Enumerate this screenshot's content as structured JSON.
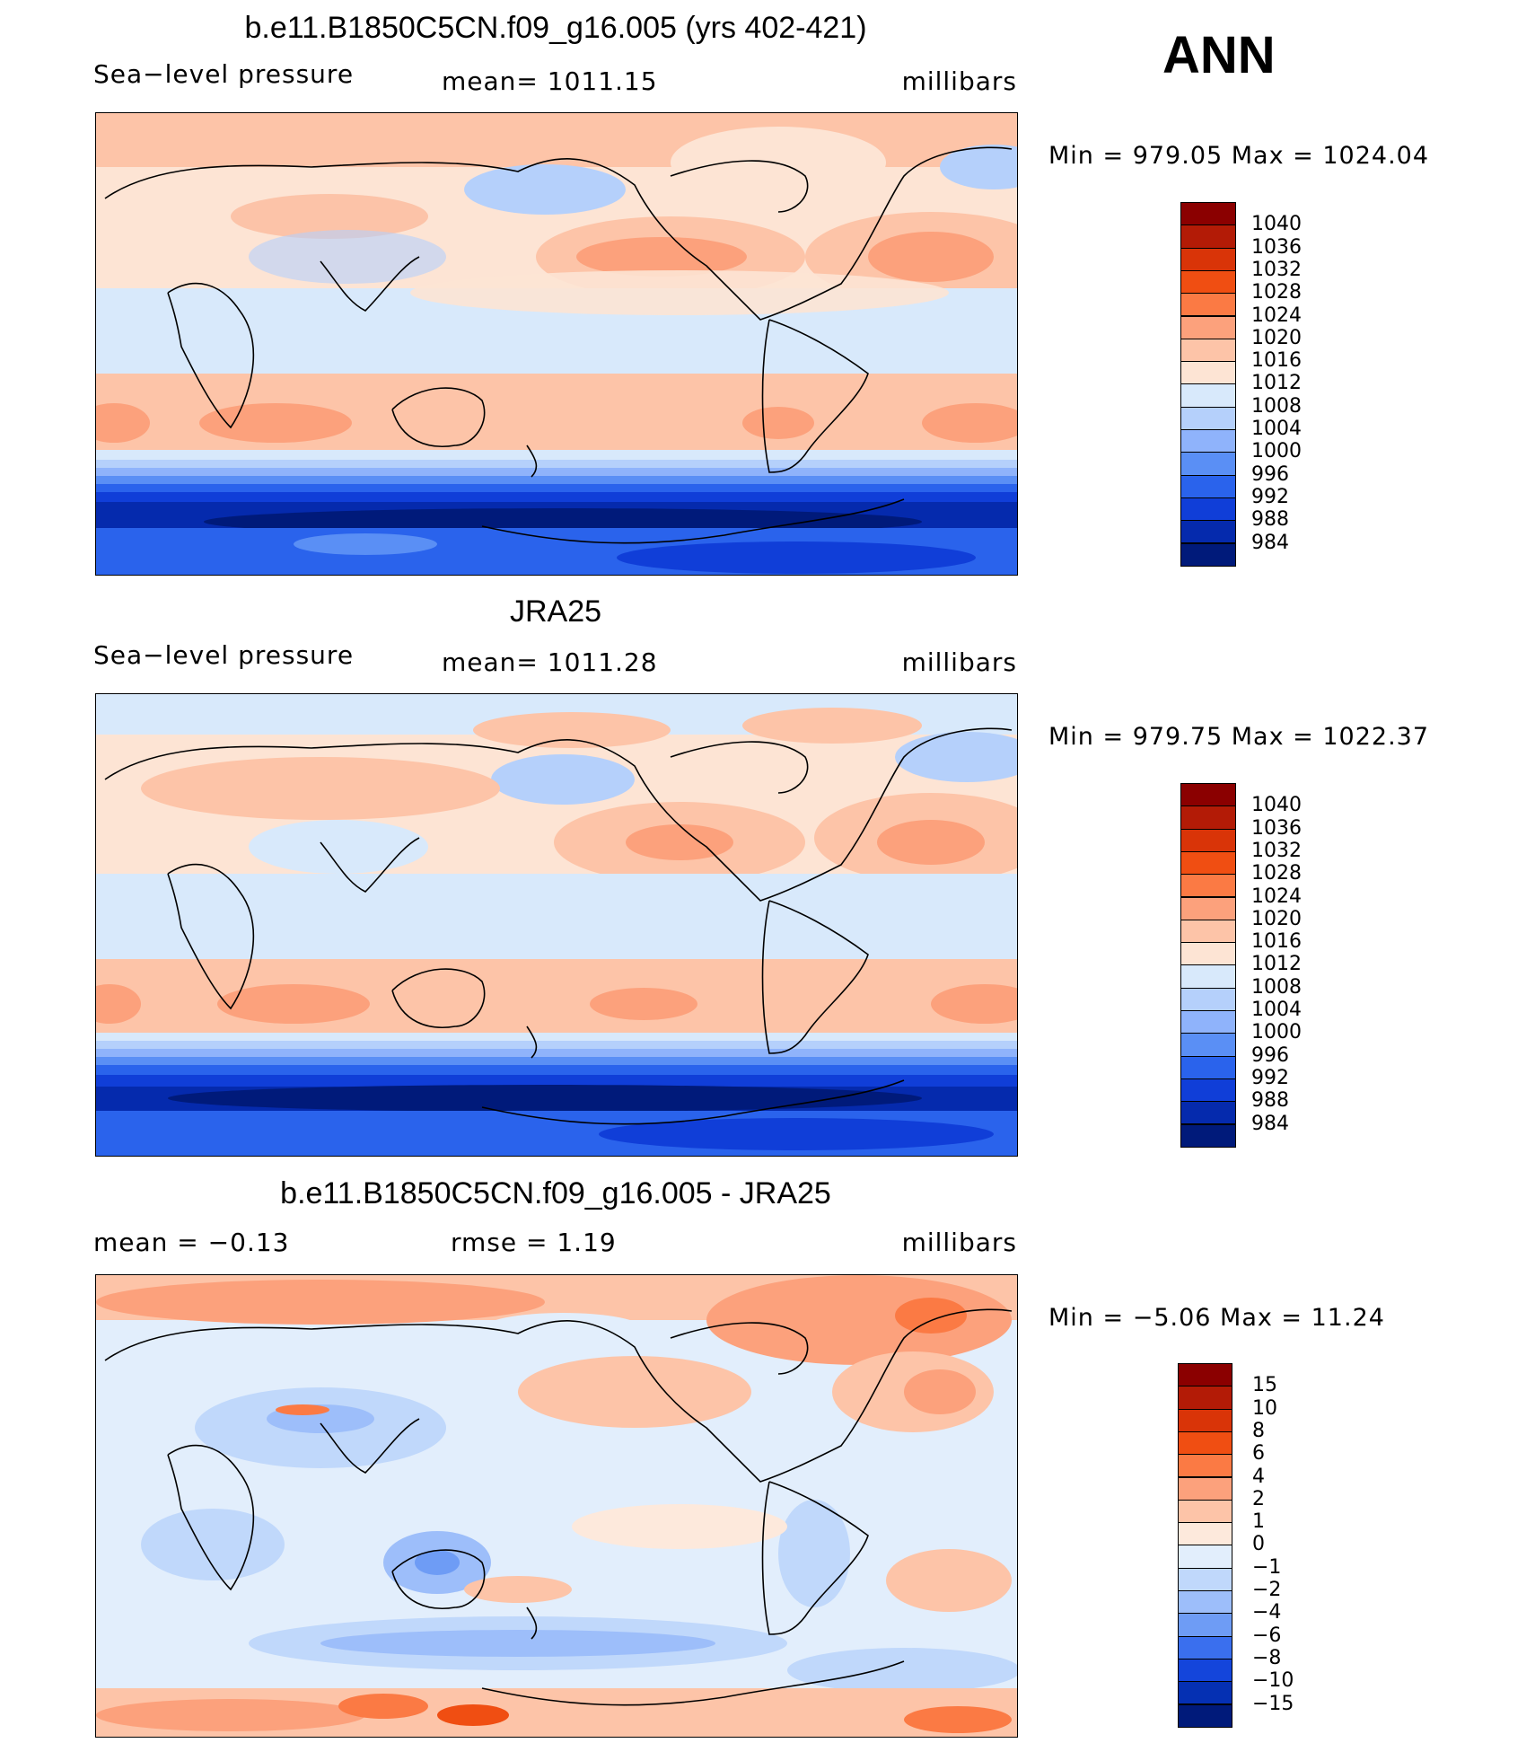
{
  "season": "ANN",
  "panels": [
    {
      "title": "b.e11.B1850C5CN.f09_g16.005 (yrs 402-421)",
      "left": "Sea−level pressure",
      "center": "mean=  1011.15",
      "right": "millibars",
      "minmax": "Min  =  979.05  Max  =  1024.04",
      "kind": "model"
    },
    {
      "title": "JRA25",
      "left": "Sea−level pressure",
      "center": "mean=  1011.28",
      "right": "millibars",
      "minmax": "Min  =  979.75  Max  =  1022.37",
      "kind": "obs"
    },
    {
      "title": "b.e11.B1850C5CN.f09_g16.005 - JRA25",
      "left": "mean  =    −0.13",
      "center": "rmse  =     1.19",
      "right": "millibars",
      "minmax": "Min  =    −5.06  Max  =    11.24",
      "kind": "diff"
    }
  ],
  "colorbars": {
    "abs_levels": [
      "1040",
      "1036",
      "1032",
      "1028",
      "1024",
      "1020",
      "1016",
      "1012",
      "1008",
      "1004",
      "1000",
      "996",
      "992",
      "988",
      "984"
    ],
    "abs_colors": [
      "#8b0000",
      "#b31b06",
      "#d93408",
      "#f04e12",
      "#fb7a44",
      "#fca17c",
      "#fdc4a8",
      "#fde4d4",
      "#d8e9fb",
      "#b5d0fb",
      "#8fb3fb",
      "#5a8ff5",
      "#2a63ec",
      "#103ed8",
      "#052aad",
      "#001a7a"
    ],
    "diff_levels": [
      "15",
      "10",
      "8",
      "6",
      "4",
      "2",
      "1",
      "0",
      "−1",
      "−2",
      "−4",
      "−6",
      "−8",
      "−10",
      "−15"
    ],
    "diff_colors": [
      "#8b0000",
      "#b31b06",
      "#d93408",
      "#f04e12",
      "#fb7a44",
      "#fca17c",
      "#fdc4a8",
      "#fde9dc",
      "#e2eefc",
      "#c0d8fb",
      "#9dbefa",
      "#6e9cf5",
      "#3a6fee",
      "#1445db",
      "#0530b3",
      "#001a7a"
    ]
  }
}
